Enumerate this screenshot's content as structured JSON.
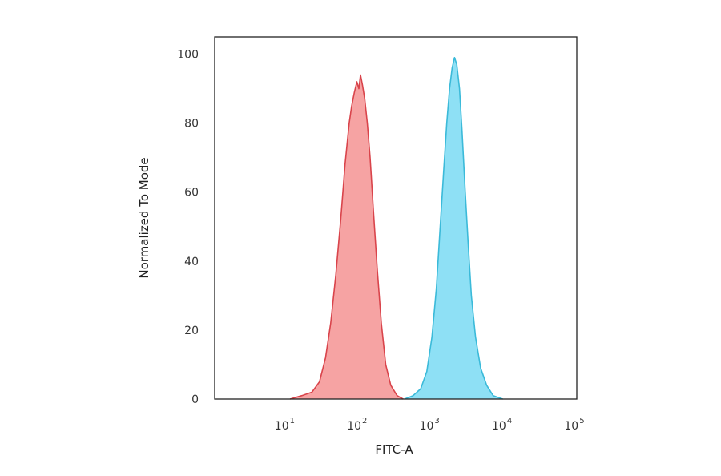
{
  "chart_data": {
    "type": "area",
    "xlabel": "FITC-A",
    "ylabel": "Normalized To Mode",
    "x_scale": "log",
    "xlim": [
      1,
      100000
    ],
    "ylim": [
      0,
      105
    ],
    "x_ticks": [
      {
        "base": "10",
        "exp": "1",
        "value": 10
      },
      {
        "base": "10",
        "exp": "2",
        "value": 100
      },
      {
        "base": "10",
        "exp": "3",
        "value": 1000
      },
      {
        "base": "10",
        "exp": "4",
        "value": 10000
      },
      {
        "base": "10",
        "exp": "5",
        "value": 100000
      }
    ],
    "y_ticks": [
      "0",
      "20",
      "40",
      "60",
      "80",
      "100"
    ],
    "grid": false,
    "series": [
      {
        "color_fill": "#f6a3a3",
        "color_line": "#d9444b",
        "points": [
          [
            11,
            0
          ],
          [
            16,
            1
          ],
          [
            22,
            2
          ],
          [
            28,
            5
          ],
          [
            34,
            12
          ],
          [
            40,
            22
          ],
          [
            47,
            36
          ],
          [
            55,
            52
          ],
          [
            63,
            68
          ],
          [
            72,
            80
          ],
          [
            78,
            85
          ],
          [
            85,
            89
          ],
          [
            92,
            92
          ],
          [
            98,
            90
          ],
          [
            103,
            94
          ],
          [
            110,
            91
          ],
          [
            118,
            87
          ],
          [
            128,
            80
          ],
          [
            140,
            70
          ],
          [
            155,
            55
          ],
          [
            175,
            38
          ],
          [
            200,
            22
          ],
          [
            230,
            10
          ],
          [
            270,
            4
          ],
          [
            330,
            1
          ],
          [
            400,
            0
          ]
        ]
      },
      {
        "color_fill": "#8ee0f5",
        "color_line": "#3bbad9",
        "points": [
          [
            420,
            0
          ],
          [
            550,
            1
          ],
          [
            700,
            3
          ],
          [
            850,
            8
          ],
          [
            1000,
            18
          ],
          [
            1150,
            32
          ],
          [
            1300,
            50
          ],
          [
            1450,
            66
          ],
          [
            1600,
            80
          ],
          [
            1750,
            90
          ],
          [
            1900,
            96
          ],
          [
            2050,
            99
          ],
          [
            2200,
            97
          ],
          [
            2400,
            90
          ],
          [
            2600,
            78
          ],
          [
            2850,
            62
          ],
          [
            3150,
            46
          ],
          [
            3500,
            30
          ],
          [
            4000,
            18
          ],
          [
            4700,
            9
          ],
          [
            5700,
            4
          ],
          [
            7000,
            1
          ],
          [
            9500,
            0
          ]
        ]
      }
    ]
  }
}
